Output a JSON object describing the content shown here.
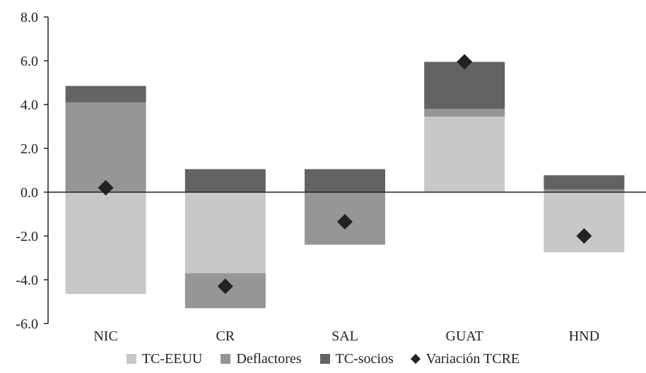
{
  "chart_data": {
    "type": "bar",
    "stacked": true,
    "categories": [
      "NIC",
      "CR",
      "SAL",
      "GUAT",
      "HND"
    ],
    "series": [
      {
        "name": "TC-EEUU",
        "kind": "bar",
        "color": "#c8c8c8",
        "values": [
          -4.65,
          -3.7,
          0.0,
          3.45,
          -2.75
        ]
      },
      {
        "name": "Deflactores",
        "kind": "bar",
        "color": "#969696",
        "values": [
          4.1,
          -1.6,
          -2.4,
          0.35,
          0.12
        ]
      },
      {
        "name": "TC-socios",
        "kind": "bar",
        "color": "#636363",
        "values": [
          0.75,
          1.05,
          1.05,
          2.15,
          0.65
        ]
      },
      {
        "name": "Variación TCRE",
        "kind": "marker",
        "color": "#222222",
        "values": [
          0.2,
          -4.3,
          -1.35,
          5.95,
          -2.0
        ]
      }
    ],
    "ylim": [
      -6.0,
      8.0
    ],
    "yticks": [
      "-6.0",
      "-4.0",
      "-2.0",
      "0.0",
      "2.0",
      "4.0",
      "6.0",
      "8.0"
    ],
    "ytick_values": [
      -6,
      -4,
      -2,
      0,
      2,
      4,
      6,
      8
    ],
    "legend_position": "bottom",
    "grid": false
  }
}
